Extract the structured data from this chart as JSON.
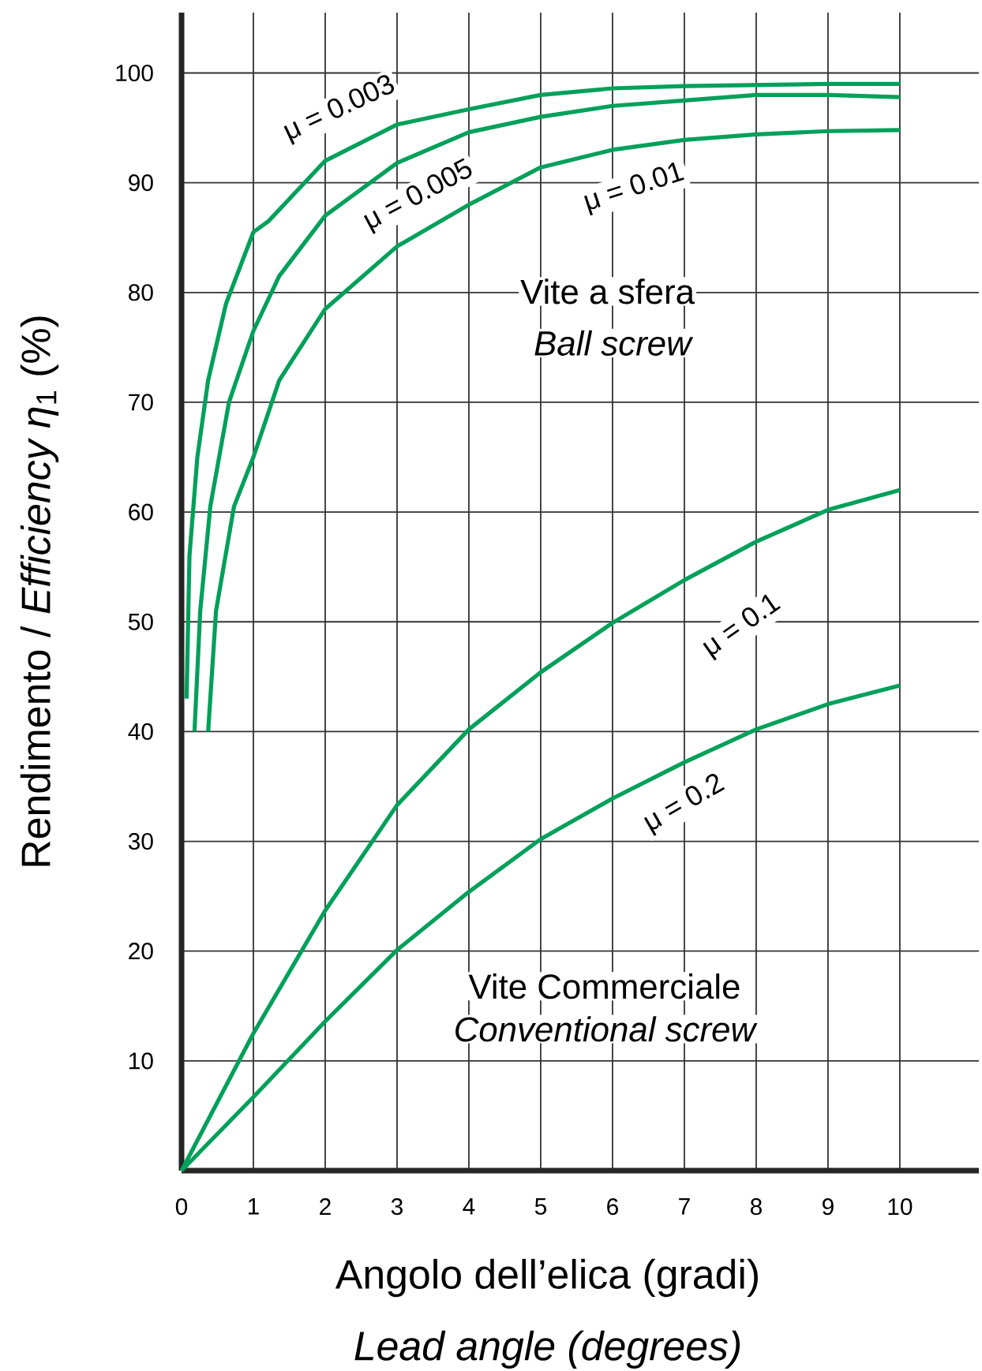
{
  "chart_data": {
    "type": "line",
    "xlabel": "Angolo dell’elica (gradi)",
    "ylabel": "Rendimento / *Efficiency η*$_{1}$ (%)",
    "annotations": [
      "Vite a sfera",
      "Ball screw",
      "Vite Commerciale",
      "Conventional screw",
      "Lead angle (degrees)"
    ],
    "series": [
      {
        "name": "μ = 0.003",
        "color": "#00a05a",
        "x": [
          0.07,
          0.11,
          0.22,
          0.37,
          0.62,
          1,
          1.21,
          2,
          3,
          4,
          5,
          6,
          7,
          8,
          9,
          10
        ],
        "values": [
          43,
          56,
          65,
          72,
          79,
          85.5,
          86.5,
          92,
          95.3,
          96.7,
          98,
          98.6,
          98.8,
          98.9,
          99,
          99
        ]
      },
      {
        "name": "μ = 0.005",
        "color": "#00a05a",
        "x": [
          0.18,
          0.26,
          0.4,
          0.66,
          1,
          1.36,
          2,
          3,
          4,
          5,
          6,
          7,
          8,
          9,
          10
        ],
        "values": [
          40,
          51,
          60.5,
          70,
          76.5,
          81.5,
          87,
          91.8,
          94.6,
          96,
          97,
          97.5,
          98,
          98,
          97.8
        ]
      },
      {
        "name": "μ = 0.01",
        "color": "#00a05a",
        "x": [
          0.37,
          0.48,
          0.73,
          1,
          1.36,
          2,
          3,
          4,
          5,
          6,
          7,
          8,
          9,
          10
        ],
        "values": [
          40,
          51,
          60.5,
          65,
          72,
          78.5,
          84.2,
          88,
          91.4,
          93,
          93.9,
          94.4,
          94.7,
          94.8
        ]
      },
      {
        "name": "μ = 0.1",
        "color": "#00a05a",
        "x": [
          0,
          1,
          2,
          3,
          4,
          5,
          6,
          7,
          8,
          9,
          10
        ],
        "values": [
          0,
          12.5,
          23.7,
          33.3,
          40.2,
          45.4,
          49.9,
          53.8,
          57.3,
          60.2,
          62
        ]
      },
      {
        "name": "μ = 0.2",
        "color": "#00a05a",
        "x": [
          0,
          1,
          2,
          3,
          4,
          5,
          6,
          7,
          8,
          9,
          10
        ],
        "values": [
          0,
          6.7,
          13.6,
          20.1,
          25.4,
          30.2,
          33.9,
          37.2,
          40.2,
          42.5,
          44.2
        ]
      }
    ],
    "xlim": [
      0,
      11.1
    ],
    "ylim": [
      0,
      105.5
    ],
    "xticks": [
      0,
      1,
      2,
      3,
      4,
      5,
      6,
      7,
      8,
      9,
      10
    ],
    "yticks": [
      10,
      20,
      30,
      40,
      50,
      60,
      70,
      80,
      90,
      100
    ],
    "grid": true,
    "marker": "none",
    "line_style": "solid"
  }
}
